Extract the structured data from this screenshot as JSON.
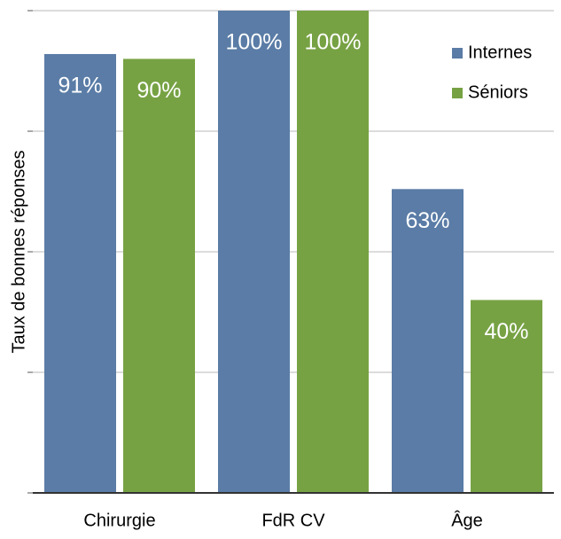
{
  "chart_data": {
    "type": "bar",
    "y_label": "Taux de bonnes réponses",
    "categories": [
      "Chirurgie",
      "FdR CV",
      "Âge"
    ],
    "series": [
      {
        "name": "Internes",
        "color": "#5a7ca6",
        "values": [
          91,
          100,
          63
        ],
        "value_labels": [
          "91%",
          "100%",
          "63%"
        ]
      },
      {
        "name": "Séniors",
        "color": "#77a244",
        "values": [
          90,
          100,
          40
        ],
        "value_labels": [
          "90%",
          "100%",
          "40%"
        ]
      }
    ],
    "ylim": [
      0,
      100
    ],
    "yticks": [
      0,
      25,
      50,
      75,
      100
    ],
    "grid": true,
    "legend": "top-right"
  }
}
